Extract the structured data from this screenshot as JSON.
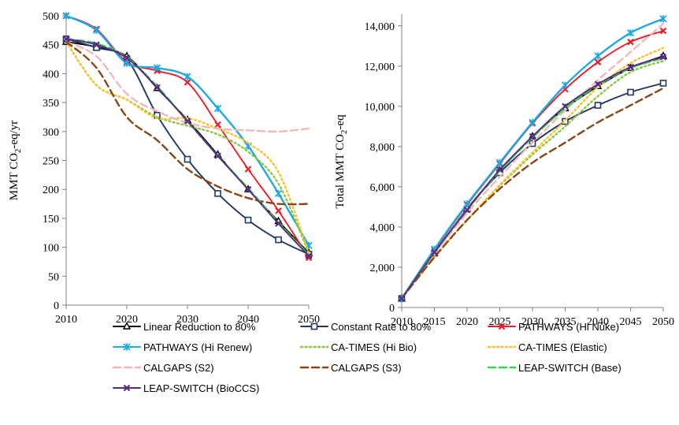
{
  "chart_data": [
    {
      "type": "line",
      "title": "",
      "xlabel": "",
      "ylabel": "MMT CO₂-eq/yr",
      "ylabel_parts": [
        "MMT CO",
        "2",
        "-eq/yr"
      ],
      "xlim": [
        2010,
        2050
      ],
      "ylim": [
        0,
        500
      ],
      "x_ticks": [
        2010,
        2020,
        2030,
        2040,
        2050
      ],
      "y_ticks": [
        0,
        50,
        100,
        150,
        200,
        250,
        300,
        350,
        400,
        450,
        500
      ],
      "x_tick_labels": [
        "2010",
        "2020",
        "2030",
        "2040",
        "2050"
      ],
      "y_tick_labels": [
        "0",
        "50",
        "100",
        "150",
        "200",
        "250",
        "300",
        "350",
        "400",
        "450",
        "500"
      ],
      "grid": false,
      "series": [
        {
          "name": "Linear Reduction to 80%",
          "color": "#000000",
          "style": "solid",
          "marker": "triangle",
          "x": [
            2010,
            2015,
            2020,
            2025,
            2030,
            2035,
            2040,
            2045,
            2050
          ],
          "y": [
            455,
            446,
            430,
            375,
            320,
            260,
            200,
            145,
            90
          ]
        },
        {
          "name": "Constant Rate to 80%",
          "color": "#1f3864",
          "style": "solid",
          "marker": "square",
          "x": [
            2010,
            2015,
            2020,
            2025,
            2030,
            2035,
            2040,
            2045,
            2050
          ],
          "y": [
            460,
            445,
            425,
            328,
            252,
            193,
            147,
            113,
            88
          ]
        },
        {
          "name": "PATHWAYS (Hi Nuke)",
          "color": "#ee1c25",
          "style": "solid",
          "marker": "x",
          "x": [
            2010,
            2015,
            2020,
            2025,
            2030,
            2035,
            2040,
            2045,
            2050
          ],
          "y": [
            500,
            477,
            420,
            405,
            385,
            312,
            235,
            163,
            82
          ]
        },
        {
          "name": "PATHWAYS (Hi Renew)",
          "color": "#1ea9e1",
          "style": "solid",
          "marker": "star",
          "x": [
            2010,
            2015,
            2020,
            2025,
            2030,
            2035,
            2040,
            2045,
            2050
          ],
          "y": [
            500,
            475,
            418,
            410,
            395,
            340,
            275,
            193,
            103
          ]
        },
        {
          "name": "CA-TIMES (Hi Bio)",
          "color": "#8dc63f",
          "style": "dotted",
          "marker": "none",
          "x": [
            2010,
            2015,
            2020,
            2025,
            2030,
            2035,
            2040,
            2045,
            2050
          ],
          "y": [
            455,
            380,
            355,
            325,
            310,
            295,
            265,
            210,
            90
          ]
        },
        {
          "name": "CA-TIMES (Elastic)",
          "color": "#fbc02d",
          "style": "dotted",
          "marker": "none",
          "x": [
            2010,
            2015,
            2020,
            2025,
            2030,
            2035,
            2040,
            2045,
            2050
          ],
          "y": [
            455,
            380,
            355,
            323,
            323,
            305,
            280,
            230,
            90
          ]
        },
        {
          "name": "CALGAPS (S2)",
          "color": "#f2b8b8",
          "style": "dashed",
          "marker": "none",
          "x": [
            2010,
            2015,
            2020,
            2025,
            2030,
            2035,
            2040,
            2045,
            2050
          ],
          "y": [
            455,
            430,
            365,
            335,
            315,
            305,
            302,
            300,
            305
          ]
        },
        {
          "name": "CALGAPS (S3)",
          "color": "#8b4513",
          "style": "dashed",
          "marker": "none",
          "x": [
            2010,
            2015,
            2020,
            2025,
            2030,
            2035,
            2040,
            2045,
            2050
          ],
          "y": [
            455,
            410,
            325,
            285,
            235,
            205,
            185,
            175,
            175
          ]
        },
        {
          "name": "LEAP-SWITCH (Base)",
          "color": "#39d353",
          "style": "dashed",
          "marker": "none",
          "x": [
            2010,
            2015,
            2020,
            2025,
            2030,
            2035,
            2040,
            2045,
            2050
          ],
          "y": [
            460,
            452,
            428,
            378,
            318,
            258,
            202,
            143,
            87
          ]
        },
        {
          "name": "LEAP-SWITCH (BioCCS)",
          "color": "#5b2c83",
          "style": "solid",
          "marker": "x",
          "x": [
            2010,
            2015,
            2020,
            2025,
            2030,
            2035,
            2040,
            2045,
            2050
          ],
          "y": [
            460,
            450,
            427,
            376,
            318,
            258,
            200,
            141,
            85
          ]
        }
      ]
    },
    {
      "type": "line",
      "title": "",
      "xlabel": "",
      "ylabel": "Total MMT CO₂-eq",
      "ylabel_parts": [
        "Total MMT CO",
        "2",
        "-eq"
      ],
      "xlim": [
        2010,
        2050
      ],
      "ylim": [
        0,
        14500
      ],
      "x_ticks": [
        2010,
        2015,
        2020,
        2025,
        2030,
        2035,
        2040,
        2045,
        2050
      ],
      "y_ticks": [
        0,
        2000,
        4000,
        6000,
        8000,
        10000,
        12000,
        14000
      ],
      "x_tick_labels": [
        "2010",
        "2015",
        "2020",
        "2025",
        "2030",
        "2035",
        "2040",
        "2045",
        "2050"
      ],
      "y_tick_labels": [
        "0",
        "2,000",
        "4,000",
        "6,000",
        "8,000",
        "10,000",
        "12,000",
        "14,000"
      ],
      "grid": false,
      "series": [
        {
          "name": "Linear Reduction to 80%",
          "color": "#000000",
          "style": "solid",
          "marker": "triangle",
          "x": [
            2010,
            2015,
            2020,
            2025,
            2030,
            2035,
            2040,
            2045,
            2050
          ],
          "y": [
            450,
            2700,
            4900,
            6800,
            8500,
            9900,
            11000,
            11900,
            12500
          ]
        },
        {
          "name": "Constant Rate to 80%",
          "color": "#1f3864",
          "style": "solid",
          "marker": "square",
          "x": [
            2010,
            2015,
            2020,
            2025,
            2030,
            2035,
            2040,
            2045,
            2050
          ],
          "y": [
            450,
            2700,
            4900,
            6700,
            8150,
            9250,
            10050,
            10700,
            11150
          ]
        },
        {
          "name": "PATHWAYS (Hi Nuke)",
          "color": "#ee1c25",
          "style": "solid",
          "marker": "x",
          "x": [
            2010,
            2015,
            2020,
            2025,
            2030,
            2035,
            2040,
            2045,
            2050
          ],
          "y": [
            450,
            2850,
            5100,
            7150,
            9150,
            10850,
            12200,
            13200,
            13750
          ]
        },
        {
          "name": "PATHWAYS (Hi Renew)",
          "color": "#1ea9e1",
          "style": "solid",
          "marker": "star",
          "x": [
            2010,
            2015,
            2020,
            2025,
            2030,
            2035,
            2040,
            2045,
            2050
          ],
          "y": [
            450,
            2900,
            5150,
            7200,
            9200,
            11050,
            12500,
            13650,
            14350
          ]
        },
        {
          "name": "CA-TIMES (Hi Bio)",
          "color": "#8dc63f",
          "style": "dotted",
          "marker": "none",
          "x": [
            2010,
            2015,
            2020,
            2025,
            2030,
            2035,
            2040,
            2045,
            2050
          ],
          "y": [
            450,
            2500,
            4350,
            6050,
            7600,
            9000,
            10500,
            11700,
            12250
          ]
        },
        {
          "name": "CA-TIMES (Elastic)",
          "color": "#fbc02d",
          "style": "dotted",
          "marker": "none",
          "x": [
            2010,
            2015,
            2020,
            2025,
            2030,
            2035,
            2040,
            2045,
            2050
          ],
          "y": [
            450,
            2500,
            4350,
            6100,
            7700,
            9300,
            10950,
            12150,
            12900
          ]
        },
        {
          "name": "CALGAPS (S2)",
          "color": "#f2b8b8",
          "style": "dashed",
          "marker": "none",
          "x": [
            2010,
            2015,
            2020,
            2025,
            2030,
            2035,
            2040,
            2045,
            2050
          ],
          "y": [
            450,
            2650,
            4700,
            6500,
            8200,
            9800,
            11300,
            12700,
            14100
          ]
        },
        {
          "name": "CALGAPS (S3)",
          "color": "#8b4513",
          "style": "dashed",
          "marker": "none",
          "x": [
            2010,
            2015,
            2020,
            2025,
            2030,
            2035,
            2040,
            2045,
            2050
          ],
          "y": [
            450,
            2500,
            4350,
            5900,
            7200,
            8200,
            9200,
            10050,
            10900
          ]
        },
        {
          "name": "LEAP-SWITCH (Base)",
          "color": "#39d353",
          "style": "dashed",
          "marker": "none",
          "x": [
            2010,
            2015,
            2020,
            2025,
            2030,
            2035,
            2040,
            2045,
            2050
          ],
          "y": [
            450,
            2750,
            4850,
            6800,
            8450,
            9900,
            11050,
            11900,
            12400
          ]
        },
        {
          "name": "LEAP-SWITCH (BioCCS)",
          "color": "#5b2c83",
          "style": "solid",
          "marker": "x",
          "x": [
            2010,
            2015,
            2020,
            2025,
            2030,
            2035,
            2040,
            2045,
            2050
          ],
          "y": [
            450,
            2750,
            4850,
            6850,
            8500,
            10000,
            11100,
            11950,
            12450
          ]
        }
      ]
    }
  ],
  "legend": {
    "placement": "bottom",
    "entries": [
      "Linear Reduction to 80%",
      "Constant Rate to 80%",
      "PATHWAYS (Hi Nuke)",
      "PATHWAYS (Hi Renew)",
      "CA-TIMES (Hi Bio)",
      "CA-TIMES (Elastic)",
      "CALGAPS (S2)",
      "CALGAPS (S3)",
      "LEAP-SWITCH (Base)",
      "LEAP-SWITCH (BioCCS)"
    ]
  }
}
